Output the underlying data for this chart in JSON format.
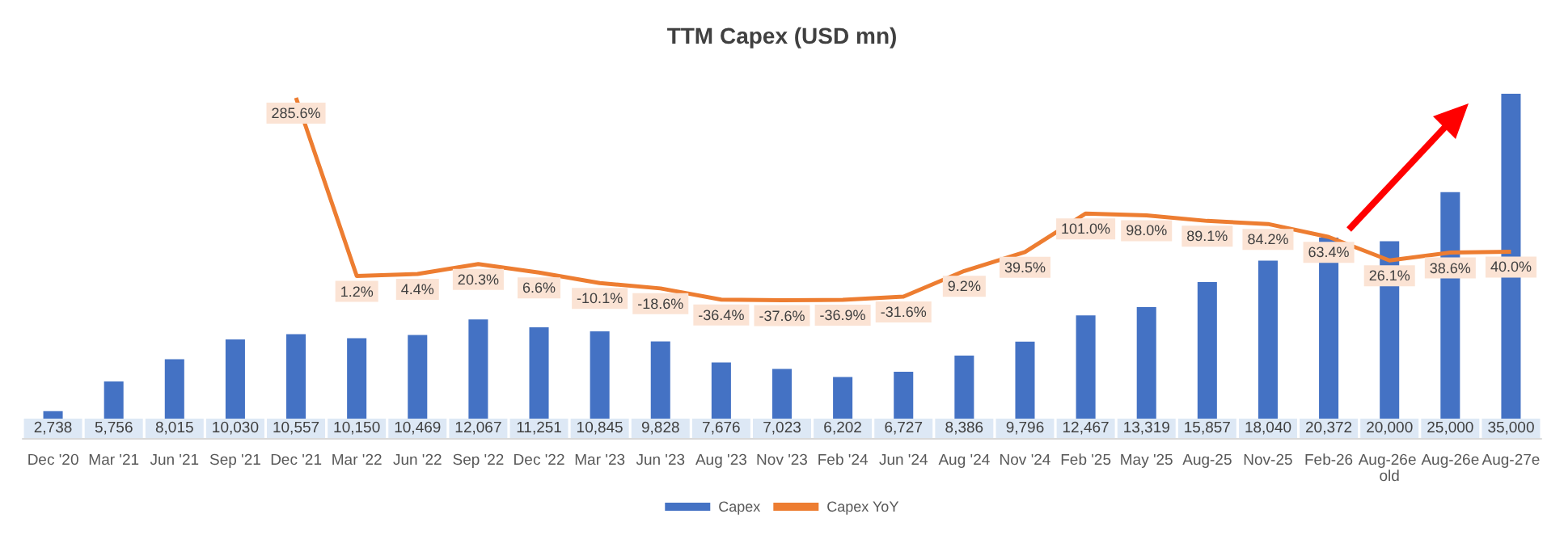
{
  "chart_data": {
    "type": "bar",
    "title": "TTM Capex (USD mn)",
    "categories": [
      "Dec '20",
      "Mar '21",
      "Jun '21",
      "Sep '21",
      "Dec '21",
      "Mar '22",
      "Jun '22",
      "Sep '22",
      "Dec '22",
      "Mar '23",
      "Jun '23",
      "Aug '23",
      "Nov '23",
      "Feb '24",
      "Jun '24",
      "Aug '24",
      "Nov '24",
      "Feb '25",
      "May '25",
      "Aug-25",
      "Nov-25",
      "Feb-26",
      "Aug-26e old",
      "Aug-26e",
      "Aug-27e"
    ],
    "series": [
      {
        "name": "Capex",
        "color": "#4472c4",
        "values": [
          2738,
          5756,
          8015,
          10030,
          10557,
          10150,
          10469,
          12067,
          11251,
          10845,
          9828,
          7676,
          7023,
          6202,
          6727,
          8386,
          9796,
          12467,
          13319,
          15857,
          18040,
          20372,
          20000,
          25000,
          35000
        ],
        "value_labels": [
          "2,738",
          "5,756",
          "8,015",
          "10,030",
          "10,557",
          "10,150",
          "10,469",
          "12,067",
          "11,251",
          "10,845",
          "9,828",
          "7,676",
          "7,023",
          "6,202",
          "6,727",
          "8,386",
          "9,796",
          "12,467",
          "13,319",
          "15,857",
          "18,040",
          "20,372",
          "20,000",
          "25,000",
          "35,000"
        ]
      },
      {
        "name": "Capex YoY",
        "type": "line",
        "axis": "y2",
        "color": "#ed7d31",
        "values": [
          null,
          null,
          null,
          null,
          285.6,
          1.2,
          4.4,
          20.3,
          6.6,
          -10.1,
          -18.6,
          -36.4,
          -37.6,
          -36.9,
          -31.6,
          9.2,
          39.5,
          101.0,
          98.0,
          89.1,
          84.2,
          63.4,
          26.1,
          38.6,
          40.0
        ],
        "value_labels": [
          null,
          null,
          null,
          null,
          "285.6%",
          "1.2%",
          "4.4%",
          "20.3%",
          "6.6%",
          "-10.1%",
          "-18.6%",
          "-36.4%",
          "-37.6%",
          "-36.9%",
          "-31.6%",
          "9.2%",
          "39.5%",
          "101.0%",
          "98.0%",
          "89.1%",
          "84.2%",
          "63.4%",
          "26.1%",
          "38.6%",
          "40.0%"
        ]
      }
    ],
    "legend": "bottom",
    "marker": "none",
    "line_style": "solid"
  }
}
